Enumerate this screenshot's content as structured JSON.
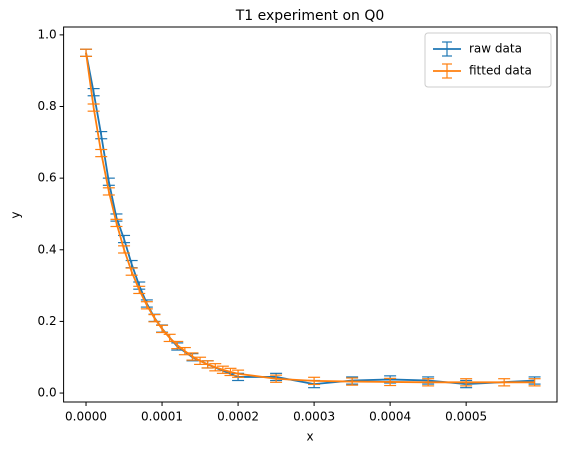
{
  "chart_data": {
    "type": "errorbar",
    "title": "T1 experiment on Q0",
    "x_label": "x",
    "y_label": "y",
    "legend": "upper right",
    "xlim": [
      -2.95e-05,
      0.0006195
    ],
    "ylim": [
      -0.025,
      1.022
    ],
    "xticks": [
      {
        "value": 0,
        "label": "0.0000"
      },
      {
        "value": 0.0001,
        "label": "0.0001"
      },
      {
        "value": 0.0002,
        "label": "0.0002"
      },
      {
        "value": 0.0003,
        "label": "0.0003"
      },
      {
        "value": 0.0004,
        "label": "0.0004"
      },
      {
        "value": 0.0005,
        "label": "0.0005"
      }
    ],
    "yticks": [
      {
        "value": 0,
        "label": "0.0"
      },
      {
        "value": 0.2,
        "label": "0.2"
      },
      {
        "value": 0.4,
        "label": "0.4"
      },
      {
        "value": 0.6,
        "label": "0.6"
      },
      {
        "value": 0.8,
        "label": "0.8"
      },
      {
        "value": 1,
        "label": "1.0"
      }
    ],
    "series": [
      {
        "name": "raw data",
        "color": "#1f77b4",
        "error": 0.01,
        "x": [
          0,
          1e-05,
          2e-05,
          3e-05,
          4e-05,
          5e-05,
          6e-05,
          7e-05,
          8e-05,
          9e-05,
          0.0001,
          0.00012,
          0.00014,
          0.00016,
          0.0002,
          0.00025,
          0.0003,
          0.00035,
          0.0004,
          0.00045,
          0.0005,
          0.00059
        ],
        "values": [
          0.95,
          0.84,
          0.72,
          0.59,
          0.49,
          0.43,
          0.36,
          0.3,
          0.25,
          0.21,
          0.18,
          0.13,
          0.1,
          0.08,
          0.045,
          0.045,
          0.025,
          0.035,
          0.038,
          0.035,
          0.025,
          0.035
        ]
      },
      {
        "name": "fitted data",
        "color": "#ff7f0e",
        "error": 0.01,
        "x": [
          0,
          1e-05,
          2e-05,
          3e-05,
          4e-05,
          5e-05,
          6e-05,
          7e-05,
          8e-05,
          9e-05,
          0.0001,
          0.00011,
          0.00012,
          0.00013,
          0.00014,
          0.00015,
          0.00016,
          0.00017,
          0.00018,
          0.00019,
          0.0002,
          0.00025,
          0.0003,
          0.00035,
          0.0004,
          0.00045,
          0.0005,
          0.00055,
          0.00059
        ],
        "values": [
          0.95,
          0.797,
          0.67,
          0.563,
          0.475,
          0.401,
          0.339,
          0.288,
          0.245,
          0.209,
          0.179,
          0.154,
          0.134,
          0.117,
          0.102,
          0.09,
          0.08,
          0.072,
          0.065,
          0.059,
          0.054,
          0.04,
          0.034,
          0.032,
          0.031,
          0.03,
          0.03,
          0.03,
          0.03
        ]
      }
    ]
  }
}
